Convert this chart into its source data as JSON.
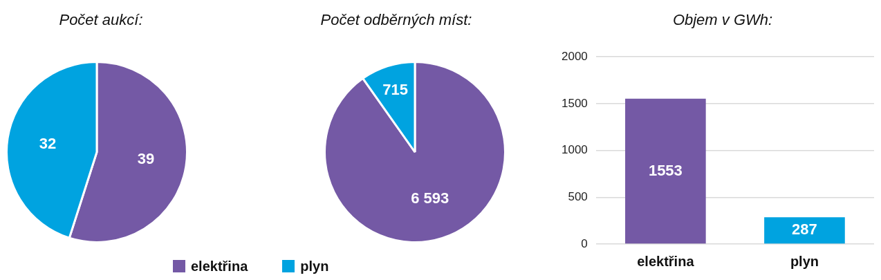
{
  "chart_data": [
    {
      "type": "pie",
      "title": "Počet aukcí:",
      "categories": [
        "elektřina",
        "plyn"
      ],
      "values": [
        39,
        32
      ],
      "colors": [
        "#7459a5",
        "#00a3e0"
      ],
      "data_labels": true,
      "legend": "bottom"
    },
    {
      "type": "pie",
      "title": "Počet odběrných míst:",
      "categories": [
        null,
        null
      ],
      "values": [
        6593,
        715
      ],
      "colors": [
        "#7459a5",
        "#00a3e0"
      ],
      "value_labels": [
        "6 593",
        "715"
      ]
    },
    {
      "type": "bar",
      "title": "Objem v GWh:",
      "categories": [
        "elektřina",
        "plyn"
      ],
      "values": [
        1553,
        287
      ],
      "colors": [
        "#7459a5",
        "#00a3e0"
      ],
      "ylim": [
        0,
        2000
      ],
      "yticks": [
        0,
        500,
        1000,
        1500,
        2000
      ],
      "grid": "y",
      "data_labels": true
    }
  ]
}
